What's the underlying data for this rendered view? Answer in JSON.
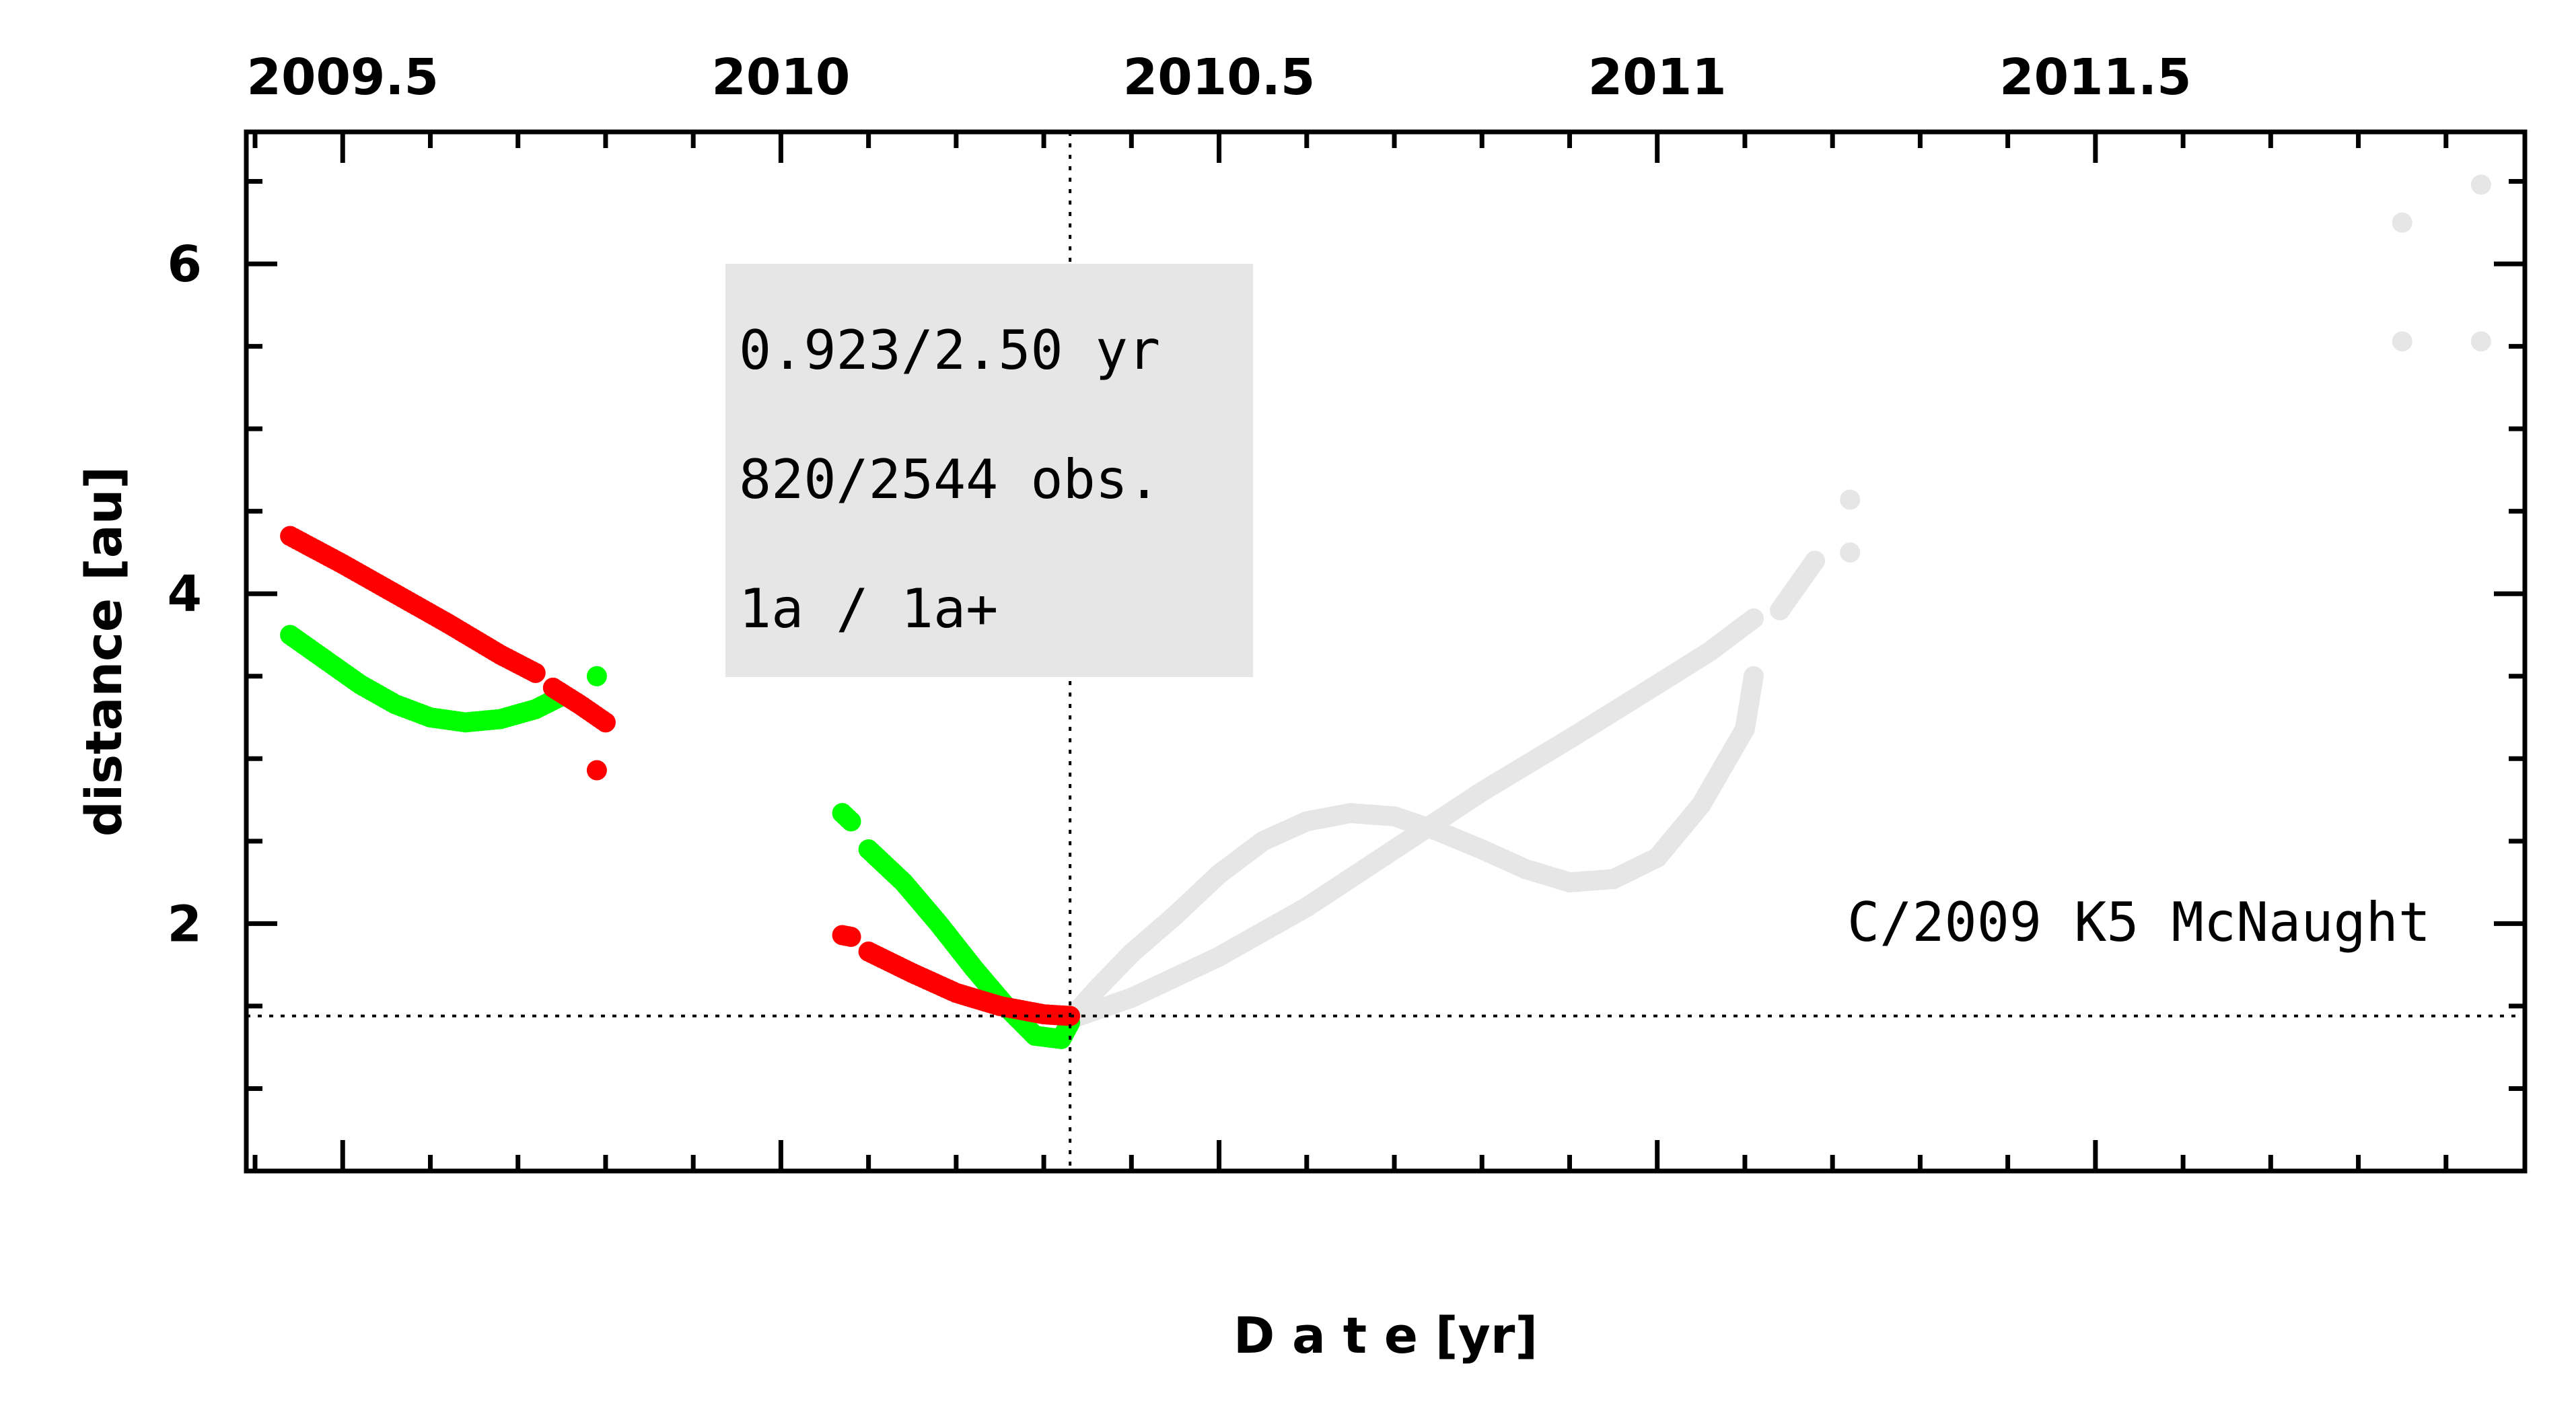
{
  "chart_data": {
    "type": "scatter",
    "xlabel": "D a t e [yr]",
    "ylabel": "distance [au]",
    "xlim": [
      2009.39,
      2011.99
    ],
    "ylim": [
      0.5,
      6.8
    ],
    "x_ticks": [
      2009.5,
      2010,
      2010.5,
      2011,
      2011.5
    ],
    "y_ticks": [
      2,
      4,
      6
    ],
    "minor_x_step": 0.1,
    "minor_y_step": 0.5,
    "grid": false,
    "reference_lines": {
      "vertical_x": 2010.33,
      "horizontal_y": 1.44
    },
    "object_label": "C/2009 K5 McNaught",
    "info_box": {
      "line1": "0.923/2.50 yr",
      "line2": "820/2544 obs.",
      "line3": "1a / 1a+"
    },
    "colors": {
      "green": "#00ff00",
      "red": "#ff0000",
      "gray": "#e6e6e6",
      "box": "#e6e6e6"
    },
    "series": [
      {
        "color": "gray",
        "segments": [
          [
            [
              2010.33,
              1.42
            ],
            [
              2010.36,
              1.6
            ],
            [
              2010.4,
              1.82
            ],
            [
              2010.45,
              2.05
            ],
            [
              2010.5,
              2.3
            ],
            [
              2010.55,
              2.5
            ],
            [
              2010.6,
              2.62
            ],
            [
              2010.65,
              2.67
            ],
            [
              2010.7,
              2.65
            ],
            [
              2010.75,
              2.56
            ],
            [
              2010.8,
              2.45
            ],
            [
              2010.85,
              2.33
            ],
            [
              2010.9,
              2.25
            ],
            [
              2010.95,
              2.27
            ],
            [
              2011.0,
              2.4
            ],
            [
              2011.05,
              2.72
            ],
            [
              2011.1,
              3.18
            ],
            [
              2011.11,
              3.5
            ]
          ],
          [
            [
              2010.33,
              1.42
            ],
            [
              2010.4,
              1.55
            ],
            [
              2010.5,
              1.8
            ],
            [
              2010.6,
              2.1
            ],
            [
              2010.7,
              2.45
            ],
            [
              2010.8,
              2.8
            ],
            [
              2010.9,
              3.12
            ],
            [
              2011.0,
              3.45
            ],
            [
              2011.06,
              3.65
            ],
            [
              2011.11,
              3.85
            ]
          ],
          [
            [
              2011.14,
              3.9
            ],
            [
              2011.16,
              4.05
            ],
            [
              2011.18,
              4.2
            ]
          ],
          [
            [
              2011.22,
              4.25
            ]
          ],
          [
            [
              2011.22,
              4.57
            ]
          ],
          [
            [
              2011.85,
              6.25
            ]
          ],
          [
            [
              2011.85,
              5.53
            ]
          ],
          [
            [
              2011.94,
              6.48
            ]
          ],
          [
            [
              2011.94,
              5.53
            ]
          ]
        ]
      },
      {
        "color": "green",
        "segments": [
          [
            [
              2009.44,
              3.75
            ],
            [
              2009.48,
              3.6
            ],
            [
              2009.52,
              3.45
            ],
            [
              2009.56,
              3.33
            ],
            [
              2009.6,
              3.25
            ],
            [
              2009.64,
              3.22
            ],
            [
              2009.68,
              3.24
            ],
            [
              2009.72,
              3.3
            ],
            [
              2009.75,
              3.38
            ]
          ],
          [
            [
              2009.79,
              3.5
            ]
          ],
          [
            [
              2010.07,
              2.67
            ],
            [
              2010.08,
              2.62
            ]
          ],
          [
            [
              2010.1,
              2.45
            ],
            [
              2010.14,
              2.25
            ],
            [
              2010.18,
              2.0
            ],
            [
              2010.22,
              1.73
            ],
            [
              2010.26,
              1.48
            ],
            [
              2010.29,
              1.32
            ],
            [
              2010.32,
              1.3
            ],
            [
              2010.33,
              1.4
            ]
          ]
        ]
      },
      {
        "color": "red",
        "segments": [
          [
            [
              2009.44,
              4.35
            ],
            [
              2009.5,
              4.18
            ],
            [
              2009.56,
              4.0
            ],
            [
              2009.62,
              3.82
            ],
            [
              2009.68,
              3.63
            ],
            [
              2009.72,
              3.52
            ]
          ],
          [
            [
              2009.74,
              3.43
            ],
            [
              2009.77,
              3.33
            ],
            [
              2009.8,
              3.22
            ]
          ],
          [
            [
              2009.79,
              2.93
            ]
          ],
          [
            [
              2010.07,
              1.93
            ],
            [
              2010.08,
              1.92
            ]
          ],
          [
            [
              2010.1,
              1.83
            ],
            [
              2010.15,
              1.7
            ],
            [
              2010.2,
              1.58
            ],
            [
              2010.25,
              1.5
            ],
            [
              2010.3,
              1.45
            ],
            [
              2010.33,
              1.44
            ]
          ]
        ]
      }
    ]
  }
}
